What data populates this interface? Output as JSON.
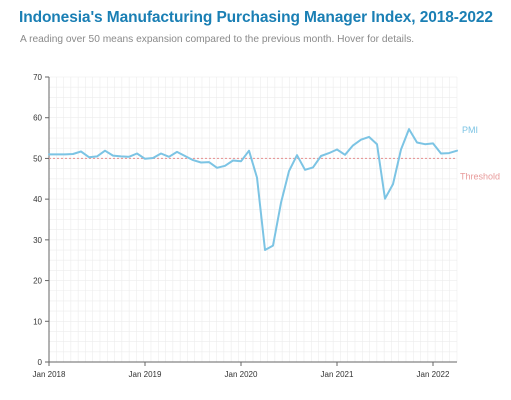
{
  "header": {
    "title": "Indonesia's Manufacturing Purchasing Manager Index, 2018-2022",
    "subtitle": "A reading over 50 means expansion compared to the previous month. Hover for details."
  },
  "colors": {
    "pmi": "#7cc4e4",
    "threshold": "#e89a9a",
    "grid": "#ececec",
    "title": "#1a7fb4"
  },
  "chart_data": {
    "type": "line",
    "title": "Indonesia's Manufacturing Purchasing Manager Index, 2018-2022",
    "xlabel": "",
    "ylabel": "",
    "ylim": [
      0,
      70
    ],
    "yticks": [
      0,
      10,
      20,
      30,
      40,
      50,
      60,
      70
    ],
    "xlim": [
      "2018-01",
      "2022-04"
    ],
    "xticks": [
      {
        "date": "2018-01",
        "label": "Jan 2018"
      },
      {
        "date": "2019-01",
        "label": "Jan 2019"
      },
      {
        "date": "2020-01",
        "label": "Jan 2020"
      },
      {
        "date": "2021-01",
        "label": "Jan 2021"
      },
      {
        "date": "2022-01",
        "label": "Jan 2022"
      }
    ],
    "grid": true,
    "series": [
      {
        "name": "PMI",
        "x": [
          "2018-01",
          "2018-02",
          "2018-03",
          "2018-04",
          "2018-05",
          "2018-06",
          "2018-07",
          "2018-08",
          "2018-09",
          "2018-10",
          "2018-11",
          "2018-12",
          "2019-01",
          "2019-02",
          "2019-03",
          "2019-04",
          "2019-05",
          "2019-06",
          "2019-07",
          "2019-08",
          "2019-09",
          "2019-10",
          "2019-11",
          "2019-12",
          "2020-01",
          "2020-02",
          "2020-03",
          "2020-04",
          "2020-05",
          "2020-06",
          "2020-07",
          "2020-08",
          "2020-09",
          "2020-10",
          "2020-11",
          "2020-12",
          "2021-01",
          "2021-02",
          "2021-03",
          "2021-04",
          "2021-05",
          "2021-06",
          "2021-07",
          "2021-08",
          "2021-09",
          "2021-10",
          "2021-11",
          "2021-12",
          "2022-01",
          "2022-02",
          "2022-03",
          "2022-04"
        ],
        "values": [
          51.0,
          51.0,
          51.0,
          51.1,
          51.7,
          50.3,
          50.5,
          51.9,
          50.7,
          50.5,
          50.4,
          51.2,
          49.9,
          50.1,
          51.2,
          50.4,
          51.6,
          50.6,
          49.6,
          49.0,
          49.1,
          47.7,
          48.2,
          49.5,
          49.3,
          51.9,
          45.3,
          27.5,
          28.6,
          39.1,
          46.9,
          50.8,
          47.2,
          47.8,
          50.6,
          51.3,
          52.2,
          50.9,
          53.2,
          54.6,
          55.3,
          53.5,
          40.1,
          43.7,
          52.2,
          57.2,
          53.9,
          53.5,
          53.7,
          51.2,
          51.3,
          51.9
        ]
      },
      {
        "name": "Threshold",
        "constant": 50
      }
    ]
  }
}
